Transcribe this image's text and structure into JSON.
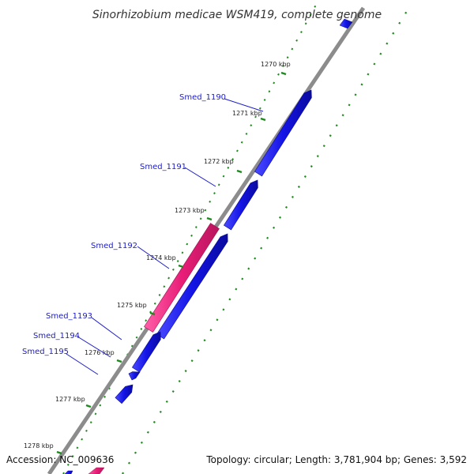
{
  "title": "Sinorhizobium medicae WSM419, complete genome",
  "footer": {
    "accession": "Accession: NC_009636",
    "summary": "Topology: circular; Length: 3,781,904 bp; Genes: 3,592"
  },
  "colors": {
    "forward_gene": "#1414e6",
    "reverse_gene": "#e81e78",
    "backbone": "#8c8c8c",
    "tick_marks": "#1f8a1f",
    "label": "#1c1cc8"
  },
  "kbp_labels": [
    "1270 kbp",
    "1271 kbp",
    "1272 kbp",
    "1273 kbp",
    "1274 kbp",
    "1275 kbp",
    "1276 kbp",
    "1277 kbp",
    "1278 kbp"
  ],
  "genes": [
    {
      "label": "Smed_1190",
      "strand": "+"
    },
    {
      "label": "Smed_1191",
      "strand": "+"
    },
    {
      "label": "Smed_1192",
      "strand": "-"
    },
    {
      "label": "Smed_1193",
      "strand": "+"
    },
    {
      "label": "Smed_1194",
      "strand": "+"
    },
    {
      "label": "Smed_1195",
      "strand": "+"
    }
  ]
}
